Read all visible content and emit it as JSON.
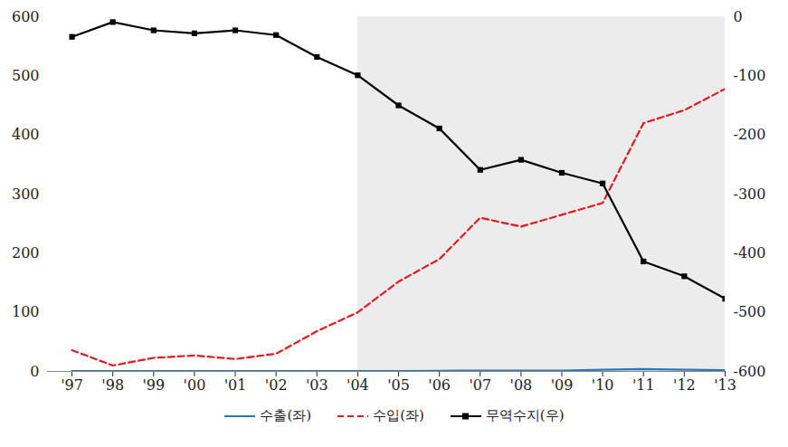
{
  "chart_data": {
    "type": "line",
    "categories": [
      "'97",
      "'98",
      "'99",
      "'00",
      "'01",
      "'02",
      "'03",
      "'04",
      "'05",
      "'06",
      "'07",
      "'08",
      "'09",
      "'10",
      "'11",
      "'12",
      "'13"
    ],
    "series": [
      {
        "name": "수출(좌)",
        "color": "#2e75b6",
        "line_style": "solid",
        "values": [
          0.5,
          0.5,
          0.5,
          0.5,
          0.5,
          0.5,
          0.5,
          0.5,
          0.5,
          1,
          1.5,
          1.5,
          1.5,
          3,
          4,
          3,
          2
        ]
      },
      {
        "name": "수입(좌)",
        "color": "#e31a1c",
        "line_style": "dashed",
        "values": [
          36,
          10,
          23,
          27,
          21,
          30,
          68,
          100,
          152,
          190,
          260,
          245,
          265,
          285,
          420,
          442,
          478
        ]
      },
      {
        "name": "무역수지(우)",
        "color": "#000000",
        "line_style": "solid",
        "marker": "square",
        "axis": "y2",
        "values": [
          -34,
          -9,
          -23,
          -28,
          -23,
          -31,
          -68,
          -99,
          -150,
          -189,
          -259,
          -242,
          -264,
          -282,
          -414,
          -439,
          -477
        ]
      }
    ],
    "shaded": [
      "'04",
      "'13"
    ],
    "ylim": [
      0,
      600
    ],
    "yticks": [
      0,
      100,
      200,
      300,
      400,
      500,
      600
    ],
    "y2lim": [
      -600,
      0
    ],
    "y2ticks": [
      -600,
      -500,
      -400,
      -300,
      -200,
      -100,
      0
    ],
    "grid": false,
    "legend": "bottom"
  }
}
